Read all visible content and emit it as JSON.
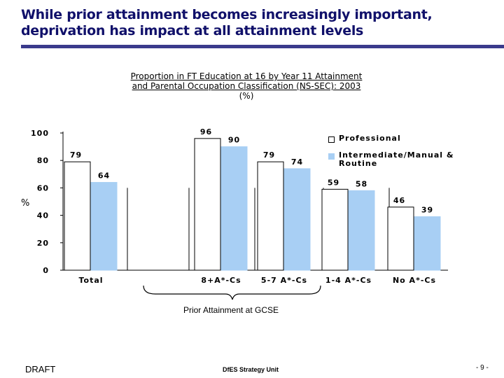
{
  "slide": {
    "title_lines": [
      "While prior attainment becomes increasingly important,",
      "deprivation has impact at all attainment levels"
    ]
  },
  "footer": {
    "left": "DRAFT",
    "center": "DfES Strategy Unit",
    "right": "- 9 -"
  },
  "colors": {
    "professional": "#ffffff",
    "intermediate": "#a8cff4",
    "title": "#10106a",
    "rule": "#3a3a8c"
  },
  "chart_data": {
    "type": "bar",
    "title_lines": [
      "Proportion in FT Education at 16 by Year 11 Attainment",
      "and Parental Occupation Classification (NS-SEC): 2003",
      "(%)"
    ],
    "ylabel": "%",
    "ylim": [
      0,
      100
    ],
    "yticks": [
      0,
      20,
      40,
      60,
      80,
      100
    ],
    "categories": [
      "Total",
      "8+A*-Cs",
      "5-7 A*-Cs",
      "1-4 A*-Cs",
      "No A*-Cs"
    ],
    "series": [
      {
        "name": "Professional",
        "values": [
          79,
          96,
          79,
          59,
          46
        ]
      },
      {
        "name": "Intermediate/Manual & Routine",
        "values": [
          64,
          90,
          74,
          58,
          39
        ]
      }
    ],
    "x_group_label": "Prior Attainment at GCSE",
    "legend_position": "top-right",
    "grid": false
  }
}
